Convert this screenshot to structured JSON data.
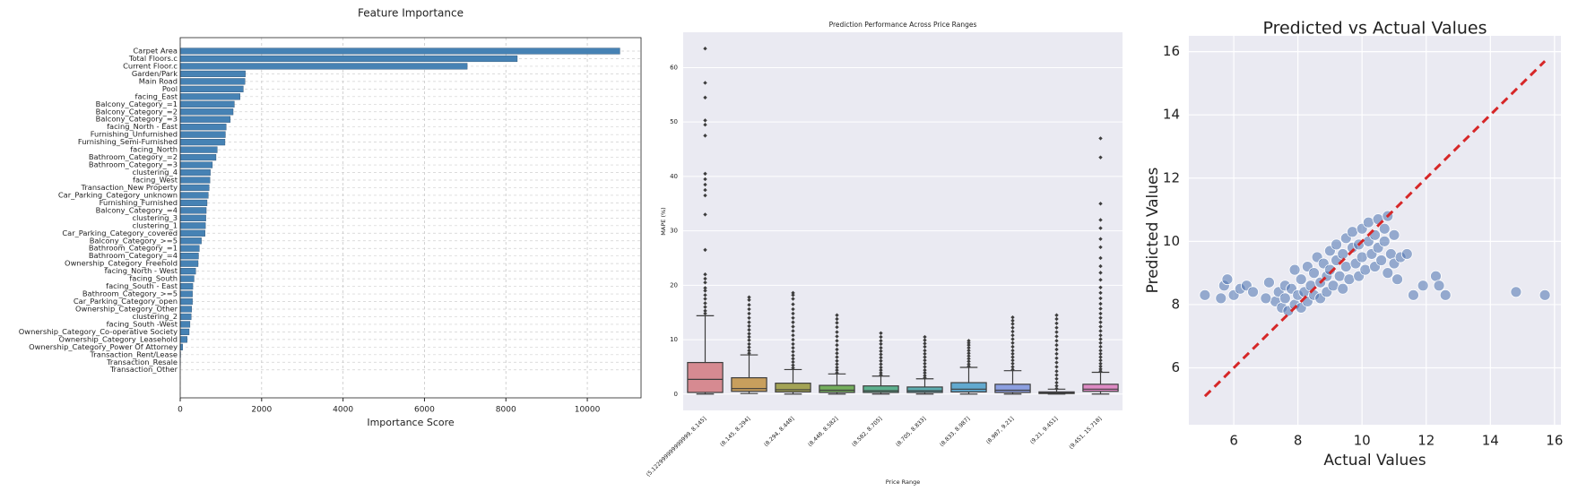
{
  "chart_data": [
    {
      "type": "barh",
      "title": "Feature Importance",
      "xlabel": "Importance Score",
      "categories": [
        "Carpet Area",
        "Total Floors.c",
        "Current Floor.c",
        "Garden/Park",
        "Main Road",
        "Pool",
        "facing_East",
        "Balcony_Category_=1",
        "Balcony_Category_=2",
        "Balcony_Category_=3",
        "facing_North - East",
        "Furnishing_Unfurnished",
        "Furnishing_Semi-Furnished",
        "facing_North",
        "Bathroom_Category_=2",
        "Bathroom_Category_=3",
        "clustering_4",
        "facing_West",
        "Transaction_New Property",
        "Car_Parking_Category_unknown",
        "Furnishing_Furnished",
        "Balcony_Category_=4",
        "clustering_3",
        "clustering_1",
        "Car_Parking_Category_covered",
        "Balcony_Category_>=5",
        "Bathroom_Category_=1",
        "Bathroom_Category_=4",
        "Ownership_Category_Freehold",
        "facing_North - West",
        "facing_South",
        "facing_South - East",
        "Bathroom_Category_>=5",
        "Car_Parking_Category_open",
        "Ownership_Category_Other",
        "clustering_2",
        "facing_South -West",
        "Ownership_Category_Co-operative Society",
        "Ownership_Category_Leasehold",
        "Ownership_Category_Power Of Attorney",
        "Transaction_Rent/Lease",
        "Transaction_Resale",
        "Transaction_Other"
      ],
      "values": [
        10800,
        8280,
        7050,
        1600,
        1590,
        1550,
        1470,
        1330,
        1300,
        1230,
        1130,
        1110,
        1100,
        910,
        880,
        790,
        740,
        730,
        710,
        690,
        660,
        640,
        630,
        620,
        610,
        520,
        470,
        450,
        440,
        380,
        340,
        310,
        300,
        300,
        280,
        270,
        240,
        220,
        170,
        60,
        10,
        5,
        0
      ],
      "color": "#4682b4",
      "xlim": [
        0,
        11320
      ],
      "xticks": [
        0,
        2000,
        4000,
        6000,
        8000,
        10000
      ],
      "grid": true
    },
    {
      "type": "box",
      "title": "Prediction Performance Across Price Ranges",
      "xlabel": "Price Range",
      "ylabel": "MAPE (%)",
      "categories": [
        "(5.122999999999999, 8.145]",
        "(8.145, 8.294]",
        "(8.294, 8.448]",
        "(8.448, 8.582]",
        "(8.582, 8.705]",
        "(8.705, 8.833]",
        "(8.833, 8.987]",
        "(8.987, 9.21]",
        "(9.21, 9.451]",
        "(9.451, 15.718]"
      ],
      "colors": [
        "#d68a91",
        "#c89f5d",
        "#a3a355",
        "#74ad5c",
        "#5db08e",
        "#5dadb0",
        "#62a9cf",
        "#8c9fe0",
        "#c08fe0",
        "#de8bc5"
      ],
      "boxes": [
        {
          "whislo": 0,
          "q1": 0.3,
          "med": 2.7,
          "q3": 5.8,
          "whishi": 14.4,
          "fliers": [
            14.8,
            15.3,
            16,
            16.7,
            17.5,
            18.2,
            19,
            19.5,
            20.5,
            21.2,
            22,
            26.5,
            33,
            36.5,
            37.5,
            38.5,
            39.5,
            40.5,
            47.5,
            49.5,
            50.3,
            54.5,
            57.2,
            63.5
          ]
        },
        {
          "whislo": 0.1,
          "q1": 0.5,
          "med": 1,
          "q3": 3,
          "whishi": 7.2,
          "fliers": [
            7.5,
            8,
            8.6,
            9.2,
            9.9,
            10.5,
            11.1,
            11.8,
            12.5,
            13.2,
            14,
            14.8,
            15.6,
            16.4,
            17.3,
            17.8
          ]
        },
        {
          "whislo": 0,
          "q1": 0.4,
          "med": 0.8,
          "q3": 2,
          "whishi": 4.5,
          "fliers": [
            4.8,
            5.3,
            5.9,
            6.5,
            7.1,
            7.8,
            8.5,
            9.2,
            10,
            10.8,
            11.6,
            12.4,
            13.2,
            14,
            14.8,
            15.6,
            16.5,
            17.5,
            18.2,
            18.6
          ]
        },
        {
          "whislo": 0,
          "q1": 0.3,
          "med": 0.7,
          "q3": 1.6,
          "whishi": 3.7,
          "fliers": [
            3.9,
            4.4,
            4.9,
            5.5,
            6.1,
            6.8,
            7.5,
            8.2,
            9,
            9.8,
            10.6,
            11.4,
            12.3,
            13.1,
            13.8,
            14.5
          ]
        },
        {
          "whislo": 0,
          "q1": 0.3,
          "med": 0.6,
          "q3": 1.5,
          "whishi": 3.3,
          "fliers": [
            3.5,
            3.9,
            4.4,
            4.9,
            5.5,
            6.1,
            6.7,
            7.3,
            7.9,
            8.5,
            9.2,
            9.8,
            10.5,
            11.2
          ]
        },
        {
          "whislo": 0,
          "q1": 0.3,
          "med": 0.6,
          "q3": 1.3,
          "whishi": 2.8,
          "fliers": [
            3,
            3.4,
            3.9,
            4.4,
            5,
            5.6,
            6.2,
            6.8,
            7.4,
            8,
            8.7,
            9.3,
            9.9,
            10.5
          ]
        },
        {
          "whislo": 0,
          "q1": 0.4,
          "med": 0.9,
          "q3": 2.1,
          "whishi": 4.9,
          "fliers": [
            5.1,
            5.5,
            6,
            6.5,
            7,
            7.5,
            8,
            8.5,
            9,
            9.4,
            9.8
          ]
        },
        {
          "whislo": 0,
          "q1": 0.3,
          "med": 0.7,
          "q3": 1.8,
          "whishi": 4.3,
          "fliers": [
            4.5,
            5,
            5.6,
            6.2,
            6.8,
            7.4,
            8,
            8.7,
            9.4,
            10.1,
            10.8,
            11.5,
            12.2,
            12.9,
            13.5,
            14.1
          ]
        },
        {
          "whislo": 0,
          "q1": 0.1,
          "med": 0.2,
          "q3": 0.4,
          "whishi": 0.9,
          "fliers": [
            1,
            1.5,
            2.1,
            2.8,
            3.5,
            4.2,
            5,
            5.8,
            6.6,
            7.4,
            8.2,
            9,
            9.8,
            10.6,
            11.4,
            12.2,
            13,
            13.8,
            14.5
          ]
        },
        {
          "whislo": 0,
          "q1": 0.5,
          "med": 0.9,
          "q3": 1.8,
          "whishi": 4,
          "fliers": [
            4.2,
            4.6,
            5.1,
            5.6,
            6.2,
            6.8,
            7.4,
            8,
            8.7,
            9.4,
            10.1,
            10.8,
            11.6,
            12.4,
            13.2,
            14,
            14.8,
            15.7,
            16.6,
            17.6,
            18.6,
            19.6,
            21,
            22.3,
            23.5,
            25,
            27,
            28.5,
            30.5,
            32,
            35,
            43.5,
            47
          ]
        }
      ],
      "ylim": [
        -3,
        66.5
      ],
      "yticks": [
        0,
        10,
        20,
        30,
        40,
        50,
        60
      ],
      "grid": true
    },
    {
      "type": "scatter",
      "title": "Predicted vs Actual Values",
      "xlabel": "Actual Values",
      "ylabel": "Predicted Values",
      "x": [
        7.3,
        7.4,
        7.5,
        7.6,
        7.6,
        7.7,
        7.8,
        7.9,
        7.9,
        8.0,
        8.1,
        8.1,
        8.2,
        8.3,
        8.3,
        8.4,
        8.5,
        8.5,
        8.6,
        8.7,
        8.7,
        8.8,
        8.9,
        8.9,
        9.0,
        9.0,
        9.1,
        9.2,
        9.2,
        9.3,
        9.4,
        9.4,
        9.5,
        9.5,
        9.6,
        9.7,
        9.7,
        9.8,
        9.9,
        9.9,
        10.0,
        10.0,
        10.1,
        10.2,
        10.2,
        10.3,
        10.4,
        10.4,
        10.5,
        10.5,
        10.6,
        10.7,
        10.7,
        10.8,
        10.8,
        10.9,
        11.0,
        11.0,
        11.1,
        11.2,
        11.4,
        11.6,
        11.9,
        12.3,
        12.4,
        12.6,
        14.8,
        15.7,
        5.1,
        5.6,
        5.7,
        5.8,
        6.0,
        6.2,
        6.4,
        6.6,
        7.0,
        7.1
      ],
      "y": [
        8.1,
        8.4,
        7.9,
        8.6,
        8.2,
        7.8,
        8.5,
        8.0,
        9.1,
        8.3,
        7.9,
        8.8,
        8.4,
        9.2,
        8.1,
        8.6,
        9.0,
        8.3,
        9.5,
        8.7,
        8.2,
        9.3,
        8.9,
        8.4,
        9.7,
        9.1,
        8.6,
        9.4,
        9.9,
        8.9,
        9.6,
        8.5,
        10.1,
        9.2,
        8.8,
        9.8,
        10.3,
        9.3,
        9.9,
        8.9,
        10.4,
        9.5,
        9.1,
        10.0,
        10.6,
        9.6,
        10.2,
        9.2,
        10.7,
        9.8,
        9.4,
        10.4,
        10.0,
        9.0,
        10.8,
        9.6,
        10.2,
        9.3,
        8.8,
        9.5,
        9.6,
        8.3,
        8.6,
        8.9,
        8.6,
        8.3,
        8.4,
        8.3,
        8.3,
        8.2,
        8.6,
        8.8,
        8.3,
        8.5,
        8.6,
        8.4,
        8.2,
        8.7
      ],
      "color": "#4c72b0",
      "reference_line": {
        "x": [
          5.1,
          15.7
        ],
        "y": [
          5.1,
          15.7
        ],
        "color": "#d62728"
      },
      "xlim": [
        4.6,
        16.2
      ],
      "ylim": [
        4.2,
        16.5
      ],
      "xticks": [
        6,
        8,
        10,
        12,
        14,
        16
      ],
      "yticks": [
        6,
        8,
        10,
        12,
        14,
        16
      ],
      "grid": true
    }
  ]
}
